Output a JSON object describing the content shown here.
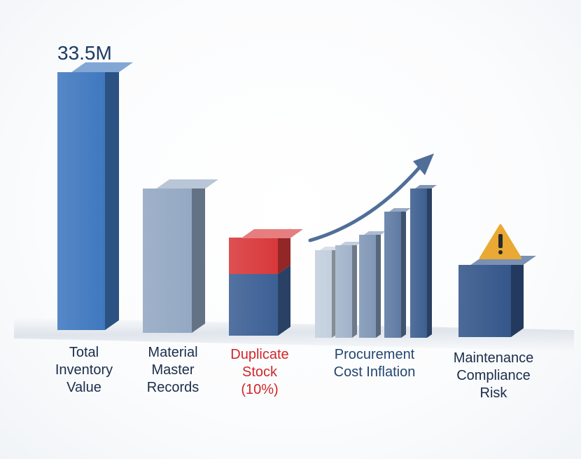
{
  "chart_data": {
    "type": "bar",
    "title": "",
    "xlabel": "",
    "ylabel": "",
    "ylim": [
      0,
      100
    ],
    "grid": false,
    "categories": [
      "Total Inventory Value",
      "Material Master Records",
      "Duplicate Stock (10%)",
      "Procurement Cost Inflation",
      "Maintenance Compliance Risk"
    ],
    "label_lines": [
      [
        "Total",
        "Inventory",
        "Value"
      ],
      [
        "Material",
        "Master",
        "Records"
      ],
      [
        "Duplicate",
        "Stock",
        "(10%)"
      ],
      [
        "Procurement",
        "Cost Inflation"
      ],
      [
        "Maintenance",
        "Compliance",
        "Risk"
      ]
    ],
    "values": [
      100,
      56,
      38,
      58,
      28
    ],
    "duplicate_segment": {
      "base": 24,
      "duplicate": 14
    },
    "procurement_series": [
      34,
      36,
      40,
      49,
      58
    ],
    "annotations": {
      "total_value": "33.5M",
      "trend_arrow": "up",
      "warning_icon": "warning-triangle-icon"
    },
    "colors": {
      "total": "#3f78bf",
      "material": "#93a8c3",
      "duplicate_base": "#3c5f94",
      "duplicate_top": "#d8383a",
      "procurement_light": "#c3cfdd",
      "procurement_dark": "#3d5e8f",
      "maintenance": "#34568a",
      "warning": "#e9a934",
      "label_red": "#d0262a"
    }
  }
}
